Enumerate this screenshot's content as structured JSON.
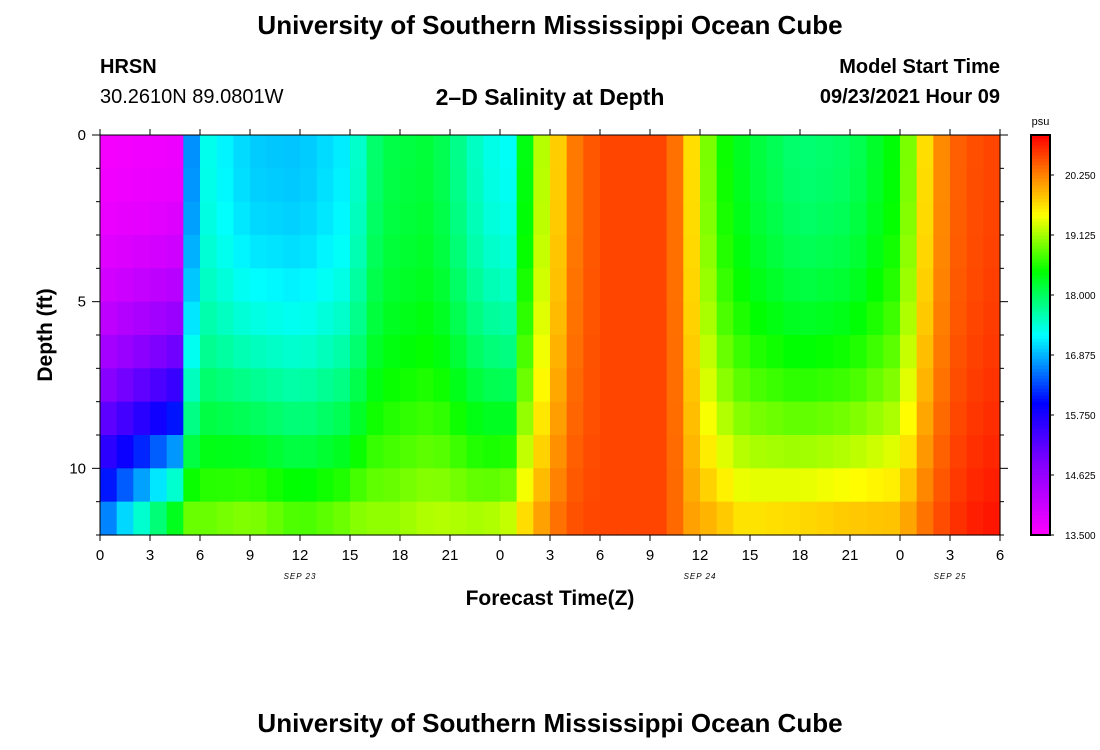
{
  "header": {
    "title": "University of Southern Mississippi Ocean Cube",
    "station": "HRSN",
    "coords": "30.2610N  89.0801W",
    "subtitle": "2–D Salinity at Depth",
    "model_label": "Model Start Time",
    "model_time": "09/23/2021 Hour 09"
  },
  "footer": {
    "title": "University of Southern Mississippi Ocean Cube"
  },
  "chart_data": {
    "type": "heatmap",
    "title": "2–D Salinity at Depth",
    "xlabel": "Forecast Time(Z)",
    "ylabel": "Depth (ft)",
    "xlim": [
      0,
      54
    ],
    "ylim": [
      0,
      12
    ],
    "x_ticks": [
      0,
      3,
      6,
      9,
      12,
      15,
      18,
      21,
      24,
      27,
      30,
      33,
      36,
      39,
      42,
      45,
      48,
      51,
      54
    ],
    "x_tick_labels": [
      "0",
      "3",
      "6",
      "9",
      "12",
      "15",
      "18",
      "21",
      "0",
      "3",
      "6",
      "9",
      "12",
      "15",
      "18",
      "21",
      "0",
      "3",
      "6"
    ],
    "y_ticks": [
      0,
      5,
      10
    ],
    "y_tick_labels": [
      "0",
      "5",
      "10"
    ],
    "date_labels": [
      {
        "text": "SEP 23",
        "x": 12
      },
      {
        "text": "SEP 24",
        "x": 36
      },
      {
        "text": "SEP 25",
        "x": 51
      }
    ],
    "colorbar": {
      "unit": "psu",
      "min": 13.5,
      "max": 21.0,
      "ticks": [
        13.5,
        14.625,
        15.75,
        16.875,
        18.0,
        19.125,
        20.25
      ],
      "tick_labels": [
        "13.500",
        "14.625",
        "15.750",
        "16.875",
        "18.000",
        "19.125",
        "20.250"
      ]
    },
    "depth_levels": [
      0.5,
      1.5,
      2.5,
      3.5,
      4.5,
      5.5,
      6.5,
      7.5,
      8.5,
      9.5,
      10.5,
      11.5
    ],
    "time_profile": {
      "hours": [
        0,
        5,
        5.5,
        6,
        9,
        12,
        15,
        16,
        17,
        20,
        23,
        25,
        25.6,
        26,
        27,
        28,
        29,
        30,
        34,
        35,
        36,
        37,
        38,
        39,
        42,
        45,
        48,
        49,
        50,
        51,
        53,
        54
      ],
      "surface": [
        13.6,
        13.7,
        16.7,
        17.4,
        17.0,
        16.95,
        17.2,
        17.8,
        18.1,
        18.2,
        17.4,
        17.25,
        18.6,
        19.0,
        19.4,
        20.2,
        20.4,
        20.6,
        20.6,
        20.1,
        19.3,
        18.6,
        18.4,
        18.2,
        17.9,
        18.0,
        18.5,
        19.4,
        20.0,
        20.4,
        20.6,
        20.6
      ],
      "bottom": [
        16.7,
        19.0,
        19.1,
        19.0,
        19.2,
        18.9,
        19.1,
        19.2,
        19.1,
        19.3,
        19.3,
        19.5,
        19.9,
        20.0,
        20.3,
        20.5,
        20.6,
        20.6,
        20.6,
        20.2,
        20.0,
        20.1,
        19.8,
        19.8,
        19.9,
        20.0,
        20.0,
        20.3,
        20.5,
        20.7,
        20.9,
        20.9
      ]
    }
  }
}
